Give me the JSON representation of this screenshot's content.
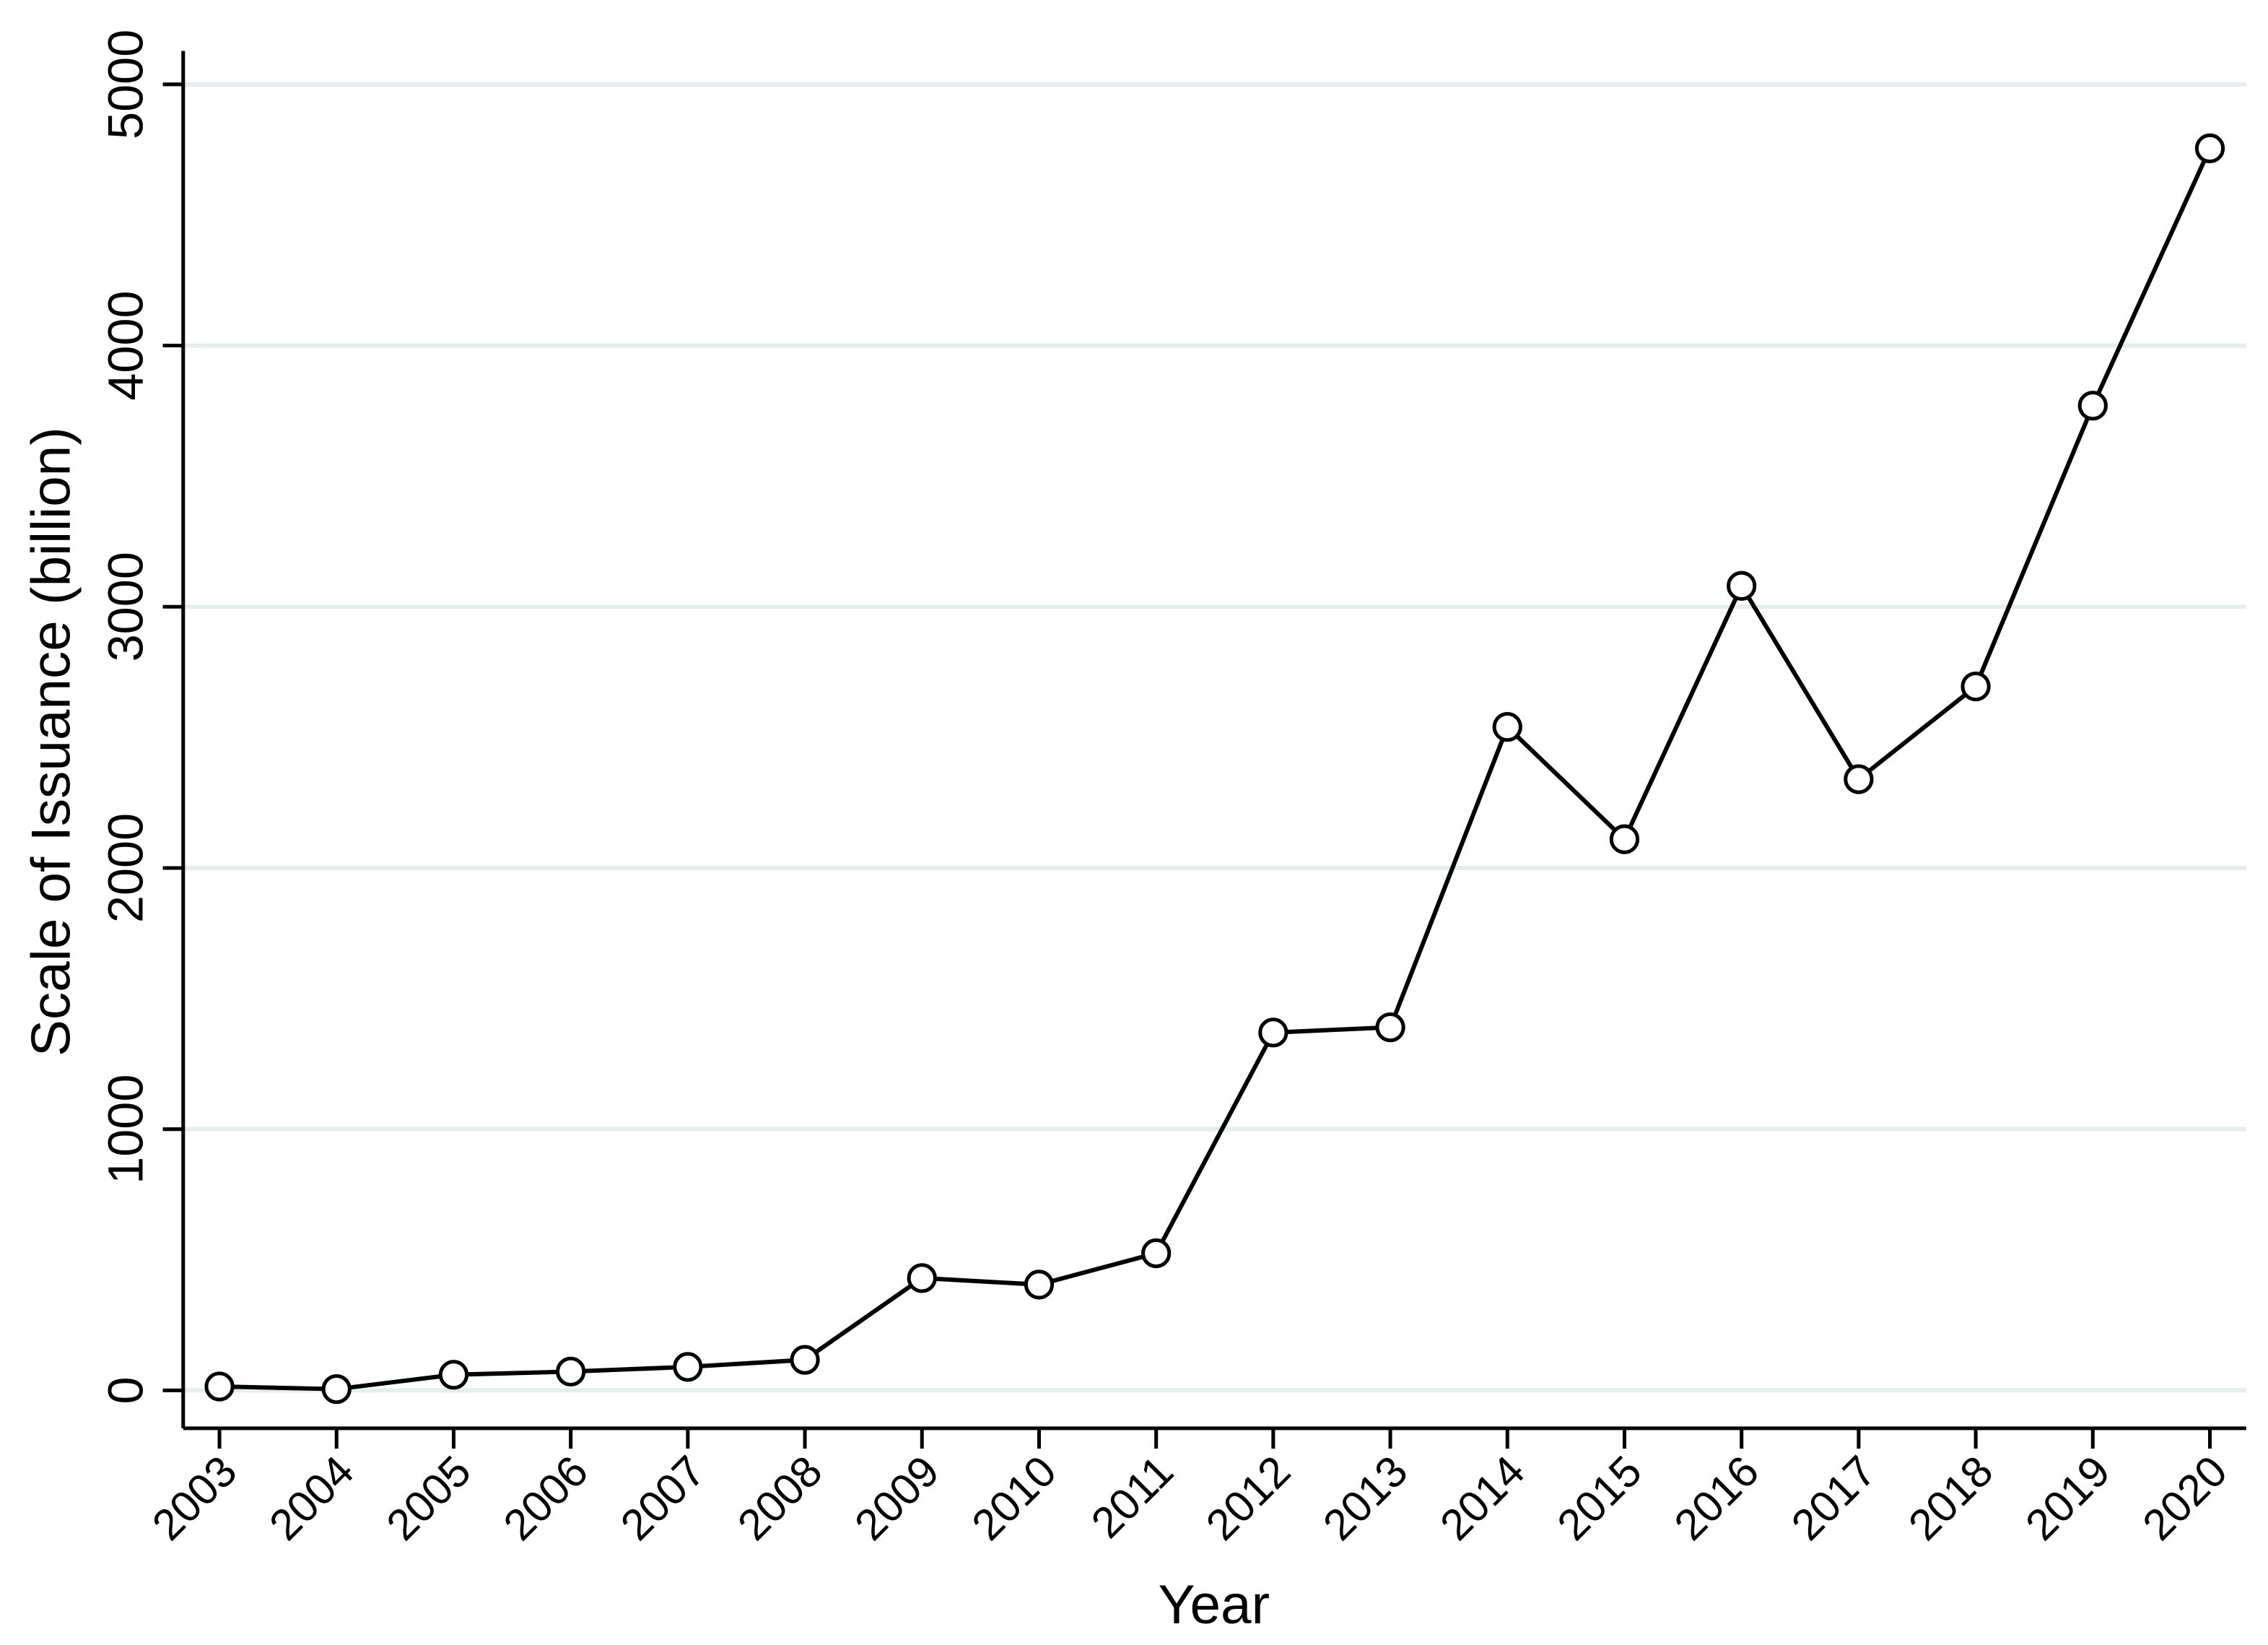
{
  "chart_data": {
    "type": "line",
    "x_label": "Year",
    "y_label": "Scale of Issuance (billion)",
    "x": [
      2003,
      2004,
      2005,
      2006,
      2007,
      2008,
      2009,
      2010,
      2011,
      2012,
      2013,
      2014,
      2015,
      2016,
      2017,
      2018,
      2019,
      2020
    ],
    "series": [
      {
        "color": "#000000",
        "values": [
          15,
          5,
          60,
          72,
          90,
          117,
          430,
          405,
          525,
          1370,
          1390,
          2540,
          2110,
          3080,
          2340,
          2695,
          3770,
          4755
        ]
      }
    ],
    "xlim": [
      2002.69,
      2020.31
    ],
    "xticks": [
      2003,
      2004,
      2005,
      2006,
      2007,
      2008,
      2009,
      2010,
      2011,
      2012,
      2013,
      2014,
      2015,
      2016,
      2017,
      2018,
      2019,
      2020
    ],
    "ylim": [
      -145,
      5128
    ],
    "yticks": [
      0,
      1000,
      2000,
      3000,
      4000,
      5000
    ],
    "grid": true
  }
}
